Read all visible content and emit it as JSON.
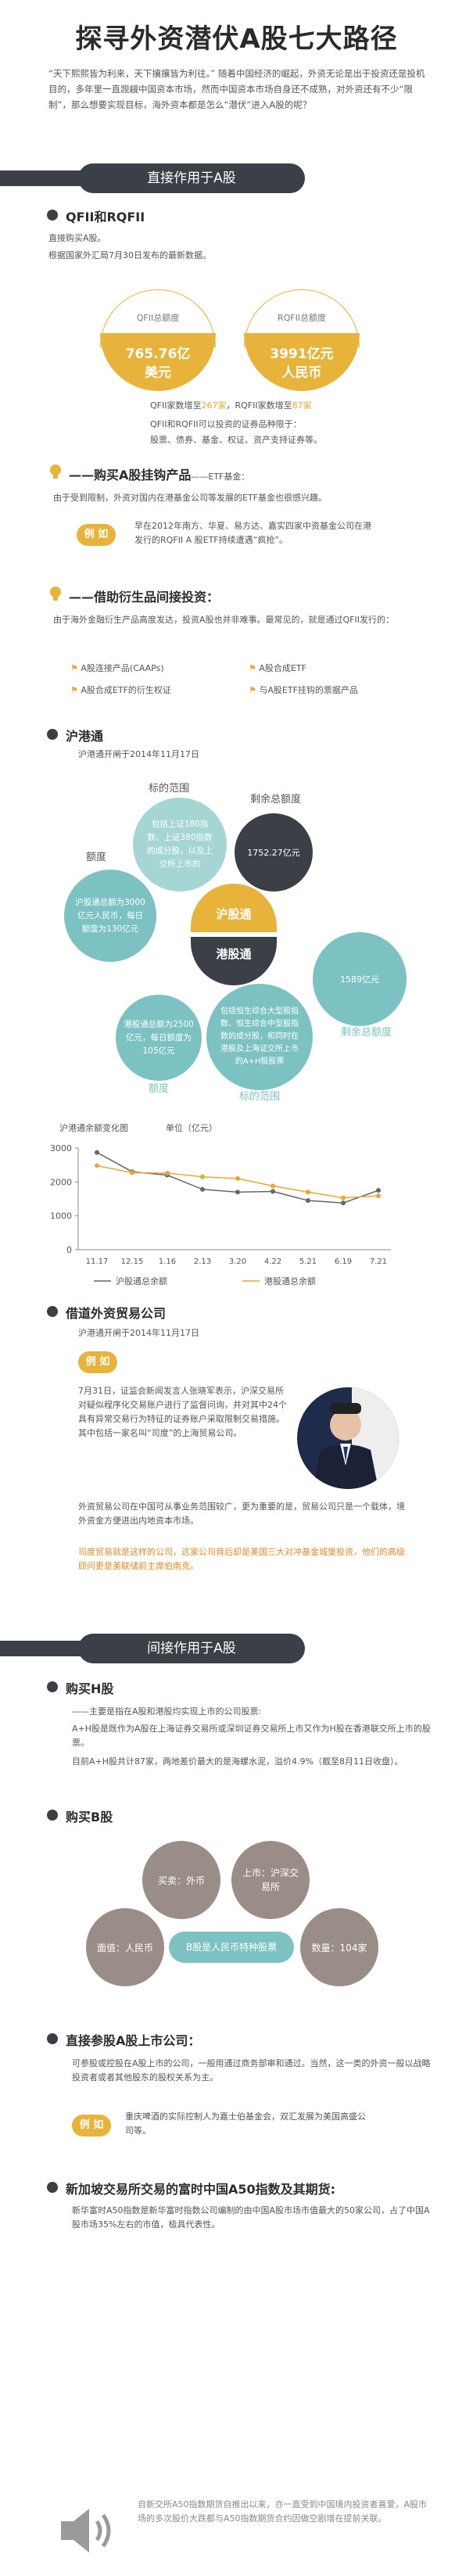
{
  "title": "探寻外资潜伏A股七大路径",
  "intro": "“天下熙熙皆为利来，天下攘攘皆为利往。” 随着中国经济的崛起，外资无论是出于投资还是投机目的，多年里一直觊觎中国资本市场，然而中国资本市场自身还不成熟，对外资还有不少“限制”，那么想要实现目标，海外资本都是怎么“潜伏”进入A股的呢？",
  "section1": "直接作用于A股",
  "section2": "间接作用于A股",
  "qfii": {
    "heading": "QFII和RQFII",
    "line1": "直接购买A股。",
    "line2": "根据国家外汇局7月30日发布的最新数据。",
    "c1_label": "QFII总额度",
    "c1_value": "765.76亿",
    "c1_unit": "美元",
    "c2_label": "RQFII总额度",
    "c2_value": "3991亿元",
    "c2_unit": "人民币",
    "count_a": "QFII家数增至",
    "count_a_num": "267家",
    "count_b": "，RQFII家数增至",
    "count_b_num": "87家",
    "scope1": "QFII和RQFII可以投资的证券品种限于：",
    "scope2": "股票、债券、基金、权证、资产支持证券等。"
  },
  "etf": {
    "heading": "——购买A股挂钩产品",
    "sub": "——ETF基金：",
    "desc": "由于受到限制，外资对国内在港基金公司等发展的ETF基金也很感兴趣。",
    "example": "例 如",
    "example_text": "早在2012年南方、华夏、易方达、嘉实四家中资基金公司在港发行的RQFII A 股ETF持续遭遇“疯抢”。"
  },
  "deriv": {
    "heading": "——借助衍生品间接投资：",
    "desc": "由于海外金融衍生产品高度发达，投资A股也并非难事。最常见的，就是通过QFII发行的：",
    "items": [
      "A股连接产品(CAAPs)",
      "A股合成ETF",
      "A股合成ETF的衍生权证",
      "与A股ETF挂钩的票据产品"
    ]
  },
  "hk": {
    "heading": "沪港通",
    "open": "沪港通开闸于2014年11月17日",
    "scope_lbl": "标的范围",
    "scope_top": "包括上证180指数、上证380指数的成分股，以及上交所上市的",
    "quota_lbl_top": "额度",
    "quota_top": "沪股通总额为3000亿元人民币，每日额度为130亿元",
    "remain_lbl_top": "剩余总额度",
    "remain_top": "1752.27亿元",
    "sh": "沪股通",
    "hkc": "港股通",
    "remain_bottom": "1589亿元",
    "remain_lbl_bottom": "剩余总额度",
    "quota_bottom": "港股通总额为2500亿元，每日额度为105亿元",
    "quota_lbl_bottom": "额度",
    "scope_bottom": "包括恒生综合大型股指数、恒生综合中型股指数的成分股，和同时在港股及上海证交所上市的A+H股股票",
    "scope_lbl_bottom": "标的范围"
  },
  "chart_data": {
    "type": "line",
    "title": "沪港通余额变化图",
    "ylabel": "单位（亿元）",
    "categories": [
      "11.17",
      "12.15",
      "1.16",
      "2.13",
      "3.20",
      "4.22",
      "5.21",
      "6.19",
      "7.21"
    ],
    "ylim": [
      0,
      3000
    ],
    "yticks": [
      0,
      1000,
      2000,
      3000
    ],
    "series": [
      {
        "name": "沪股通总余额",
        "color": "#666666",
        "values": [
          2870,
          2300,
          2200,
          1780,
          1700,
          1720,
          1450,
          1380,
          1750
        ]
      },
      {
        "name": "港股通总余额",
        "color": "#e8a930",
        "values": [
          2480,
          2270,
          2260,
          2150,
          2100,
          1880,
          1700,
          1530,
          1590
        ]
      }
    ]
  },
  "cross": {
    "heading": "借道外资贸易公司",
    "open": "沪港通开闸于2014年11月17日",
    "example": "例 如",
    "p1": "7月31日，证监会新闻发言人张晓军表示，沪深交易所对疑似程序化交易账户进行了监督问询，并对其中24个具有异常交易行为特征的证券账户采取限制交易措施。其中包括一家名叫“司度”的上海贸易公司。",
    "p2": "外资贸易公司在中国可从事业务范围较广，更为重要的是，贸易公司只是一个载体，境外资金方便进出内地资本市场。",
    "p3": "司度贸易就是这样的公司，这家公司背后却是美国三大对冲基金城堡投资，他们的高级顾问更是美联储前主席伯南克。"
  },
  "hshare": {
    "heading": "购买H股",
    "l1": "——主要是指在A股和港股均实现上市的公司股票:",
    "l2": "A+H股是既作为A股在上海证券交易所或深圳证券交易所上市又作为H股在香港联交所上市的股票。",
    "l3a": "目前A+H股共计87家，两地差价最大的是海螺水泥，溢价4.9%（截至8月11日收盘）。"
  },
  "bshare": {
    "heading": "购买B股",
    "c_buy": "买卖：外币",
    "c_list": "上市：沪深交易所",
    "c_face": "面值：人民币",
    "c_core": "B股是人民币特种股票",
    "c_count": "数量：104家"
  },
  "stake": {
    "heading": "直接参股A股上市公司：",
    "desc": "可参股或控股在A股上市的公司，一般用通过商务部审和通过。当然，这一类的外资一般以战略投资者或者其他股东的股权关系为主。",
    "example": "例 如",
    "example_text": "重庆啤酒的实际控制人为嘉士伯基金会，双汇发展为美国高盛公司等。"
  },
  "a50": {
    "heading": "新加坡交易所交易的富时中国A50指数及其期货:",
    "desc": "新华富时A50指数是新华富时指数公司编制的由中国A股市场市值最大的50家公司，占了中国A股市场35%左右的市值，极具代表性。",
    "note": "自新交所A50指数期货自推出以来，亦一直受到中国境内投资者喜爱，A股市场的多次股价大跌都与A50指数期货合约因做空剧增在提前关联。"
  },
  "colors": {
    "dark": "#3b4046",
    "gold": "#e8b33a",
    "teal": "#7cc2c2",
    "grey": "#9a8d88"
  }
}
